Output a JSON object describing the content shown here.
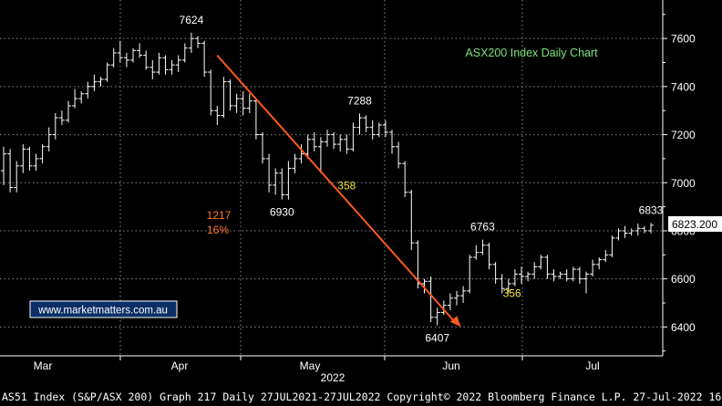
{
  "chart_data": {
    "type": "ohlc",
    "title": "ASX200 Index Daily Chart",
    "ylim": [
      6280,
      7760
    ],
    "y_ticks": [
      6400,
      6600,
      6800,
      7000,
      7200,
      7400,
      7600
    ],
    "y_tick_labels": [
      "6400",
      "6600",
      "6800",
      "7000",
      "7200",
      "7400",
      "7600"
    ],
    "x_tick_labels": [
      "Mar",
      "Apr",
      "May",
      "Jun",
      "Jul"
    ],
    "x_year_label": "2022",
    "last_price_label": "6823.200",
    "watermark": "www.marketmatters.com.au",
    "grid": true,
    "bars": [
      [
        7050,
        7150,
        6990,
        7120
      ],
      [
        7120,
        7140,
        6960,
        6980
      ],
      [
        6980,
        7090,
        6960,
        7070
      ],
      [
        7070,
        7160,
        7040,
        7140
      ],
      [
        7140,
        7150,
        7050,
        7070
      ],
      [
        7070,
        7120,
        7050,
        7100
      ],
      [
        7100,
        7160,
        7080,
        7150
      ],
      [
        7150,
        7230,
        7130,
        7200
      ],
      [
        7200,
        7290,
        7180,
        7270
      ],
      [
        7270,
        7300,
        7240,
        7260
      ],
      [
        7260,
        7340,
        7250,
        7320
      ],
      [
        7320,
        7390,
        7310,
        7350
      ],
      [
        7350,
        7380,
        7330,
        7370
      ],
      [
        7370,
        7420,
        7350,
        7400
      ],
      [
        7400,
        7450,
        7380,
        7420
      ],
      [
        7420,
        7440,
        7400,
        7430
      ],
      [
        7430,
        7500,
        7420,
        7490
      ],
      [
        7490,
        7560,
        7480,
        7540
      ],
      [
        7540,
        7590,
        7500,
        7520
      ],
      [
        7520,
        7540,
        7480,
        7510
      ],
      [
        7510,
        7560,
        7500,
        7550
      ],
      [
        7550,
        7580,
        7520,
        7530
      ],
      [
        7530,
        7550,
        7470,
        7480
      ],
      [
        7480,
        7510,
        7430,
        7460
      ],
      [
        7460,
        7540,
        7450,
        7520
      ],
      [
        7520,
        7530,
        7450,
        7470
      ],
      [
        7470,
        7510,
        7450,
        7490
      ],
      [
        7490,
        7530,
        7460,
        7510
      ],
      [
        7510,
        7580,
        7500,
        7560
      ],
      [
        7560,
        7624,
        7540,
        7600
      ],
      [
        7600,
        7610,
        7560,
        7580
      ],
      [
        7580,
        7590,
        7440,
        7460
      ],
      [
        7460,
        7470,
        7280,
        7300
      ],
      [
        7300,
        7320,
        7240,
        7280
      ],
      [
        7280,
        7440,
        7270,
        7420
      ],
      [
        7420,
        7430,
        7300,
        7320
      ],
      [
        7320,
        7370,
        7290,
        7350
      ],
      [
        7350,
        7380,
        7280,
        7310
      ],
      [
        7310,
        7370,
        7290,
        7340
      ],
      [
        7340,
        7350,
        7180,
        7200
      ],
      [
        7200,
        7210,
        7080,
        7100
      ],
      [
        7100,
        7120,
        6960,
        6990
      ],
      [
        6990,
        7060,
        6950,
        7040
      ],
      [
        7040,
        7060,
        6930,
        6950
      ],
      [
        6950,
        7090,
        6930,
        7060
      ],
      [
        7060,
        7120,
        7040,
        7100
      ],
      [
        7100,
        7160,
        7080,
        7120
      ],
      [
        7120,
        7200,
        7100,
        7180
      ],
      [
        7180,
        7210,
        7130,
        7150
      ],
      [
        7150,
        7190,
        7040,
        7170
      ],
      [
        7170,
        7220,
        7150,
        7200
      ],
      [
        7200,
        7210,
        7140,
        7160
      ],
      [
        7160,
        7200,
        7130,
        7180
      ],
      [
        7180,
        7200,
        7120,
        7140
      ],
      [
        7140,
        7250,
        7130,
        7230
      ],
      [
        7230,
        7288,
        7200,
        7270
      ],
      [
        7270,
        7280,
        7210,
        7230
      ],
      [
        7230,
        7260,
        7180,
        7200
      ],
      [
        7200,
        7250,
        7190,
        7240
      ],
      [
        7240,
        7260,
        7190,
        7210
      ],
      [
        7210,
        7220,
        7120,
        7150
      ],
      [
        7150,
        7170,
        7060,
        7080
      ],
      [
        7080,
        7090,
        6940,
        6960
      ],
      [
        6960,
        6970,
        6720,
        6750
      ],
      [
        6750,
        6760,
        6560,
        6580
      ],
      [
        6580,
        6600,
        6540,
        6590
      ],
      [
        6590,
        6610,
        6420,
        6440
      ],
      [
        6440,
        6480,
        6407,
        6460
      ],
      [
        6460,
        6510,
        6450,
        6490
      ],
      [
        6490,
        6540,
        6470,
        6520
      ],
      [
        6520,
        6550,
        6490,
        6530
      ],
      [
        6530,
        6570,
        6500,
        6550
      ],
      [
        6550,
        6700,
        6540,
        6690
      ],
      [
        6690,
        6740,
        6680,
        6710
      ],
      [
        6710,
        6763,
        6700,
        6740
      ],
      [
        6740,
        6750,
        6640,
        6660
      ],
      [
        6660,
        6670,
        6580,
        6600
      ],
      [
        6600,
        6620,
        6540,
        6560
      ],
      [
        6560,
        6600,
        6540,
        6580
      ],
      [
        6580,
        6640,
        6570,
        6620
      ],
      [
        6620,
        6650,
        6580,
        6610
      ],
      [
        6610,
        6630,
        6590,
        6620
      ],
      [
        6620,
        6670,
        6600,
        6650
      ],
      [
        6650,
        6700,
        6640,
        6690
      ],
      [
        6690,
        6700,
        6600,
        6620
      ],
      [
        6620,
        6640,
        6590,
        6610
      ],
      [
        6610,
        6630,
        6600,
        6620
      ],
      [
        6620,
        6640,
        6590,
        6600
      ],
      [
        6600,
        6650,
        6590,
        6640
      ],
      [
        6640,
        6650,
        6580,
        6600
      ],
      [
        6600,
        6630,
        6540,
        6620
      ],
      [
        6620,
        6680,
        6610,
        6660
      ],
      [
        6660,
        6690,
        6640,
        6680
      ],
      [
        6680,
        6720,
        6670,
        6700
      ],
      [
        6700,
        6780,
        6690,
        6770
      ],
      [
        6770,
        6810,
        6760,
        6800
      ],
      [
        6800,
        6820,
        6770,
        6790
      ],
      [
        6790,
        6810,
        6780,
        6800
      ],
      [
        6800,
        6830,
        6780,
        6810
      ],
      [
        6810,
        6820,
        6790,
        6800
      ],
      [
        6800,
        6833,
        6790,
        6823
      ]
    ],
    "annotations": [
      {
        "text": "7624",
        "x": 29,
        "y": 7624,
        "pos": "above",
        "color": "#ffffff"
      },
      {
        "text": "7288",
        "x": 55,
        "y": 7288,
        "pos": "above",
        "color": "#ffffff"
      },
      {
        "text": "6930",
        "x": 43,
        "y": 6930,
        "pos": "below",
        "color": "#ffffff"
      },
      {
        "text": "358",
        "x": 53,
        "y": 7040,
        "pos": "below",
        "color": "#f5e23a"
      },
      {
        "text": "6763",
        "x": 74,
        "y": 6763,
        "pos": "above",
        "color": "#ffffff"
      },
      {
        "text": "6407",
        "x": 67,
        "y": 6407,
        "pos": "below",
        "color": "#ffffff"
      },
      {
        "text": "356",
        "x": 76,
        "y": 6540,
        "pos": "right",
        "color": "#f5e23a"
      },
      {
        "text": "6833",
        "x": 100,
        "y": 6833,
        "pos": "above",
        "color": "#ffffff"
      }
    ],
    "decline_label": [
      "1217",
      "16%"
    ],
    "arrow": {
      "from": [
        22,
        7530
      ],
      "to": [
        56,
        6400
      ],
      "color": "#ff5a1f"
    }
  },
  "footer": "AS51 Index (S&P/ASX 200) Graph 217  Daily 27JUL2021-27JUL2022  Copyright© 2022 Bloomberg Finance L.P.  27-Jul-2022 16:30:07"
}
